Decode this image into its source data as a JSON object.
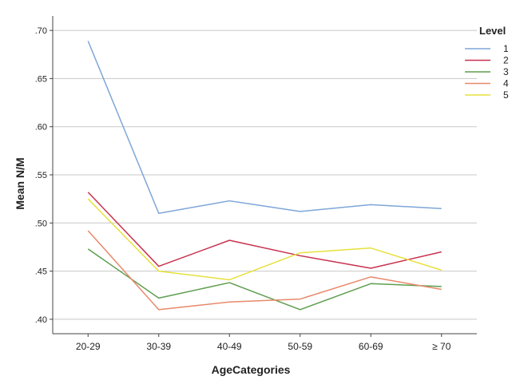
{
  "chart_data": {
    "type": "line",
    "title": "",
    "xlabel": "AgeCategories",
    "ylabel": "Mean N/M",
    "categories": [
      "20-29",
      "30-39",
      "40-49",
      "50-59",
      "60-69",
      "≥ 70"
    ],
    "ylim": [
      0.385,
      0.715
    ],
    "y_ticks": [
      0.4,
      0.45,
      0.5,
      0.55,
      0.6,
      0.65,
      0.7
    ],
    "y_tick_labels": [
      ".40",
      ".45",
      ".50",
      ".55",
      ".60",
      ".65",
      ".70"
    ],
    "grid": "horizontal",
    "legend": {
      "title": "Level",
      "placement": "right"
    },
    "series": [
      {
        "name": "1",
        "color": "#7ea6d8",
        "values": [
          0.689,
          0.51,
          0.523,
          0.512,
          0.519,
          0.515
        ]
      },
      {
        "name": "2",
        "color": "#c8314f",
        "values": [
          0.532,
          0.455,
          0.482,
          0.466,
          0.453,
          0.47
        ]
      },
      {
        "name": "3",
        "color": "#5e9e4f",
        "values": [
          0.473,
          0.422,
          0.438,
          0.41,
          0.437,
          0.434
        ]
      },
      {
        "name": "4",
        "color": "#e8896a",
        "values": [
          0.492,
          0.41,
          0.418,
          0.421,
          0.444,
          0.431
        ]
      },
      {
        "name": "5",
        "color": "#e6e13c",
        "values": [
          0.525,
          0.45,
          0.441,
          0.469,
          0.474,
          0.451
        ]
      }
    ]
  }
}
